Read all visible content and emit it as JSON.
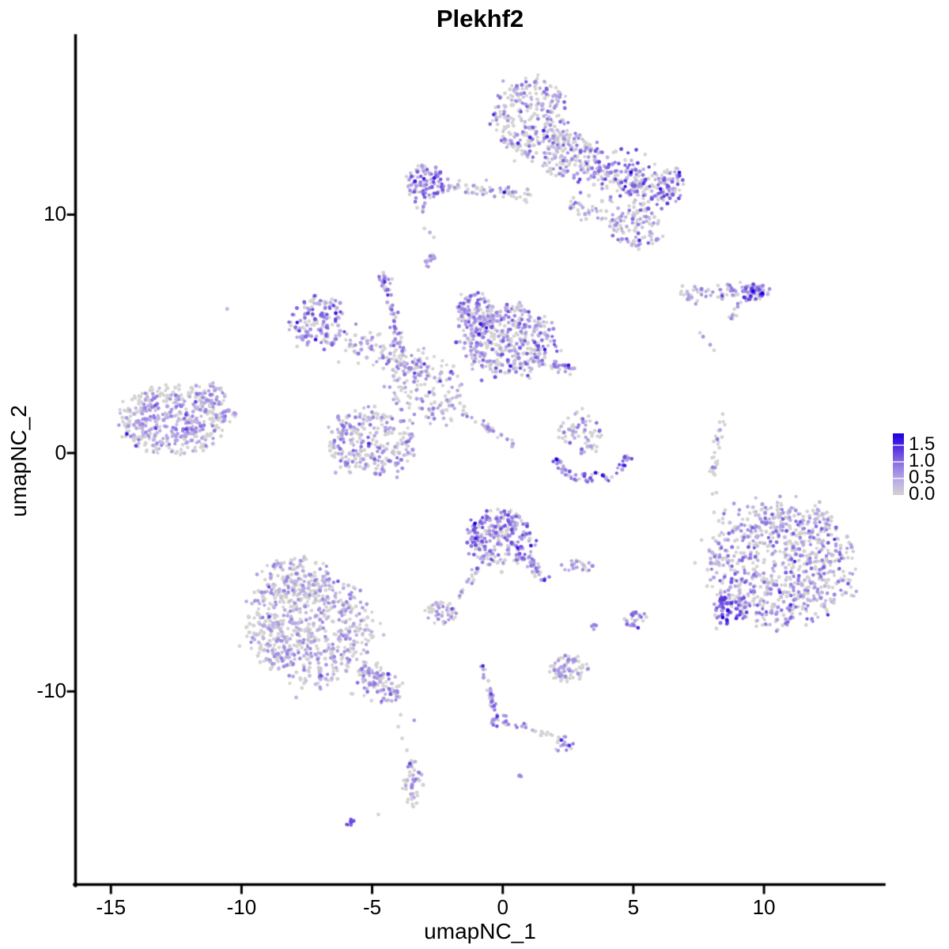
{
  "figure": {
    "title": "Plekhf2",
    "xlabel": "umapNC_1",
    "ylabel": "umapNC_2"
  },
  "chart_data": {
    "type": "scatter",
    "title": "Plekhf2",
    "xlabel": "umapNC_1",
    "ylabel": "umapNC_2",
    "xlim": [
      -16.4,
      14.6
    ],
    "ylim": [
      -18.15,
      17.51
    ],
    "x_ticks": [
      -15,
      -10,
      -5,
      0,
      5,
      10
    ],
    "x_tick_labels": [
      "-15",
      "-10",
      "-5",
      "0",
      "5",
      "10"
    ],
    "y_ticks": [
      10,
      0,
      -10
    ],
    "y_tick_labels": [
      "10",
      "0",
      "-10"
    ],
    "grid": false,
    "legend": {
      "position": "right",
      "labels": [
        "1.5",
        "1.0",
        "0.5",
        "0.0"
      ],
      "values": [
        1.5,
        1.0,
        0.5,
        0.0
      ],
      "vmin": 0,
      "vmax": 1.85
    },
    "color_stops": [
      [
        0.0,
        "#D3D3D3"
      ],
      [
        0.4,
        "#BCAEE4"
      ],
      [
        0.8,
        "#9B84E4"
      ],
      [
        1.2,
        "#7050E0"
      ],
      [
        1.6,
        "#3D18E0"
      ],
      [
        1.9,
        "#1A00E6"
      ]
    ],
    "gray_color": "#D3D3D3",
    "point_radius": 2.3,
    "seed": 42,
    "clusters": [
      {
        "shape": "blob",
        "cx": 1.06,
        "cy": 14.03,
        "rx": 1.45,
        "ry": 1.7,
        "n": 280,
        "gray": 0.52,
        "lo": 0.15,
        "hi": 1.15
      },
      {
        "shape": "blob",
        "cx": 2.52,
        "cy": 12.5,
        "rx": 1.0,
        "ry": 0.95,
        "n": 130,
        "gray": 0.5,
        "lo": 0.15,
        "hi": 1.15
      },
      {
        "shape": "band",
        "x1": 3.18,
        "y1": 12.14,
        "x2": 6.3,
        "y2": 10.8,
        "w": 0.95,
        "n": 240,
        "gray": 0.4,
        "lo": 0.2,
        "hi": 1.35
      },
      {
        "shape": "blob",
        "cx": 6.45,
        "cy": 11.21,
        "rx": 0.5,
        "ry": 0.75,
        "n": 45,
        "gray": 0.35,
        "lo": 0.3,
        "hi": 1.4
      },
      {
        "shape": "band",
        "x1": 2.6,
        "y1": 10.5,
        "x2": 4.4,
        "y2": 9.7,
        "w": 0.4,
        "n": 45,
        "gray": 0.5,
        "lo": 0.2,
        "hi": 1.1
      },
      {
        "shape": "blob",
        "cx": 5.15,
        "cy": 9.39,
        "rx": 0.95,
        "ry": 0.85,
        "n": 85,
        "gray": 0.48,
        "lo": 0.2,
        "hi": 1.15
      },
      {
        "shape": "blob",
        "cx": -2.97,
        "cy": 11.31,
        "rx": 0.78,
        "ry": 0.72,
        "n": 100,
        "gray": 0.3,
        "lo": 0.3,
        "hi": 1.25
      },
      {
        "shape": "band",
        "x1": -2.12,
        "y1": 11.14,
        "x2": 1.1,
        "y2": 10.78,
        "w": 0.3,
        "n": 65,
        "gray": 0.55,
        "lo": 0.2,
        "hi": 0.9
      },
      {
        "shape": "blob",
        "cx": -3.1,
        "cy": 10.3,
        "rx": 0.22,
        "ry": 0.25,
        "n": 6,
        "gray": 0.5,
        "lo": 0.3,
        "hi": 0.8
      },
      {
        "shape": "band",
        "x1": -3.0,
        "y1": 7.85,
        "x2": -2.58,
        "y2": 8.32,
        "w": 0.14,
        "n": 14,
        "gray": 0.15,
        "lo": 0.5,
        "hi": 1.05
      },
      {
        "shape": "band",
        "x1": 6.7,
        "y1": 6.67,
        "x2": 10.2,
        "y2": 6.8,
        "w": 0.34,
        "n": 85,
        "gray": 0.5,
        "lo": 0.3,
        "hi": 1.0
      },
      {
        "shape": "blob",
        "cx": 9.61,
        "cy": 6.73,
        "rx": 0.42,
        "ry": 0.33,
        "n": 40,
        "gray": 0.12,
        "lo": 0.5,
        "hi": 1.5
      },
      {
        "shape": "band",
        "x1": 9.12,
        "y1": 6.1,
        "x2": 8.67,
        "y2": 5.6,
        "w": 0.12,
        "n": 9,
        "gray": 0.35,
        "lo": 0.5,
        "hi": 1.0
      },
      {
        "shape": "blob",
        "cx": -7.06,
        "cy": 5.47,
        "rx": 1.05,
        "ry": 1.05,
        "n": 150,
        "gray": 0.28,
        "lo": 0.3,
        "hi": 1.3
      },
      {
        "shape": "band",
        "x1": -6.15,
        "y1": 4.81,
        "x2": -2.88,
        "y2": 3.48,
        "w": 0.6,
        "n": 120,
        "gray": 0.5,
        "lo": 0.2,
        "hi": 1.0
      },
      {
        "shape": "band",
        "x1": -4.42,
        "y1": 7.0,
        "x2": -3.94,
        "y2": 4.34,
        "w": 0.15,
        "n": 40,
        "gray": 0.35,
        "lo": 0.4,
        "hi": 1.1
      },
      {
        "shape": "blob",
        "cx": -4.48,
        "cy": 7.33,
        "rx": 0.3,
        "ry": 0.33,
        "n": 16,
        "gray": 0.2,
        "lo": 0.5,
        "hi": 1.1
      },
      {
        "shape": "blob",
        "cx": -2.79,
        "cy": 2.59,
        "rx": 1.5,
        "ry": 1.5,
        "n": 130,
        "gray": 0.55,
        "lo": 0.2,
        "hi": 0.9
      },
      {
        "shape": "blob",
        "cx": 0.21,
        "cy": 4.68,
        "rx": 1.75,
        "ry": 1.5,
        "n": 400,
        "gray": 0.36,
        "lo": 0.2,
        "hi": 1.25
      },
      {
        "shape": "blob",
        "cx": -1.0,
        "cy": 5.87,
        "rx": 0.85,
        "ry": 0.8,
        "n": 110,
        "gray": 0.3,
        "lo": 0.3,
        "hi": 1.3
      },
      {
        "shape": "blob",
        "cx": -5.09,
        "cy": 0.43,
        "rx": 1.6,
        "ry": 1.45,
        "n": 280,
        "gray": 0.45,
        "lo": 0.2,
        "hi": 1.1
      },
      {
        "shape": "band",
        "x1": -2.33,
        "y1": 2.26,
        "x2": 0.52,
        "y2": 0.36,
        "w": 0.12,
        "n": 35,
        "gray": 0.4,
        "lo": 0.3,
        "hi": 1.0
      },
      {
        "shape": "band",
        "x1": 1.97,
        "y1": 3.81,
        "x2": 2.73,
        "y2": 3.35,
        "w": 0.28,
        "n": 25,
        "gray": 0.25,
        "lo": 0.3,
        "hi": 1.1
      },
      {
        "shape": "blob",
        "cx": -12.73,
        "cy": 1.36,
        "rx": 1.95,
        "ry": 1.45,
        "n": 420,
        "gray": 0.22,
        "lo": 0.25,
        "hi": 0.95,
        "gray_edge": true
      },
      {
        "shape": "blob",
        "cx": -11.12,
        "cy": 2.42,
        "rx": 0.55,
        "ry": 0.5,
        "n": 50,
        "gray": 0.3,
        "lo": 0.25,
        "hi": 0.9
      },
      {
        "shape": "blob",
        "cx": -10.55,
        "cy": 1.53,
        "rx": 0.38,
        "ry": 0.3,
        "n": 25,
        "gray": 0.3,
        "lo": 0.25,
        "hi": 0.9
      },
      {
        "shape": "blob",
        "cx": 3.06,
        "cy": 0.9,
        "rx": 0.85,
        "ry": 0.95,
        "n": 65,
        "gray": 0.5,
        "lo": 0.3,
        "hi": 1.1
      },
      {
        "shape": "arc",
        "cx": 3.39,
        "cy": -0.2,
        "rx": 1.36,
        "ry": 0.92,
        "a1": 182,
        "a2": 366,
        "w": 0.3,
        "n": 60,
        "gray": 0.28,
        "lo": 0.4,
        "hi": 1.3
      },
      {
        "shape": "band",
        "x1": 8.36,
        "y1": 1.29,
        "x2": 8.0,
        "y2": -1.0,
        "w": 0.14,
        "n": 30,
        "gray": 0.68,
        "lo": 0.5,
        "hi": 0.9
      },
      {
        "shape": "blob",
        "cx": 10.7,
        "cy": -4.61,
        "rx": 2.75,
        "ry": 2.6,
        "n": 800,
        "gray": 0.44,
        "lo": 0.2,
        "hi": 1.15
      },
      {
        "shape": "blob",
        "cx": 8.73,
        "cy": -6.53,
        "rx": 0.68,
        "ry": 0.6,
        "n": 70,
        "gray": 0.15,
        "lo": 0.5,
        "hi": 1.45
      },
      {
        "shape": "blob",
        "cx": -0.09,
        "cy": -3.55,
        "rx": 1.3,
        "ry": 1.15,
        "n": 260,
        "gray": 0.3,
        "lo": 0.3,
        "hi": 1.3
      },
      {
        "shape": "band",
        "x1": 1.0,
        "y1": -4.28,
        "x2": 1.58,
        "y2": -5.44,
        "w": 0.2,
        "n": 30,
        "gray": 0.45,
        "lo": 0.4,
        "hi": 1.2
      },
      {
        "shape": "band",
        "x1": -0.88,
        "y1": -4.74,
        "x2": -1.76,
        "y2": -6.1,
        "w": 0.13,
        "n": 18,
        "gray": 0.6,
        "lo": 0.3,
        "hi": 0.8
      },
      {
        "shape": "blob",
        "cx": -2.36,
        "cy": -6.73,
        "rx": 0.6,
        "ry": 0.5,
        "n": 50,
        "gray": 0.3,
        "lo": 0.3,
        "hi": 0.9,
        "gray_edge": true
      },
      {
        "shape": "blob",
        "cx": 2.91,
        "cy": -4.74,
        "rx": 0.62,
        "ry": 0.3,
        "n": 22,
        "gray": 0.35,
        "lo": 0.3,
        "hi": 0.8
      },
      {
        "shape": "blob",
        "cx": 5.09,
        "cy": -6.97,
        "rx": 0.42,
        "ry": 0.4,
        "n": 26,
        "gray": 0.3,
        "lo": 0.4,
        "hi": 1.1
      },
      {
        "shape": "blob",
        "cx": 3.48,
        "cy": -7.26,
        "rx": 0.18,
        "ry": 0.18,
        "n": 7,
        "gray": 0.3,
        "lo": 0.5,
        "hi": 0.9
      },
      {
        "shape": "blob",
        "cx": -7.42,
        "cy": -7.36,
        "rx": 2.45,
        "ry": 2.3,
        "n": 650,
        "gray": 0.52,
        "lo": 0.2,
        "hi": 0.85
      },
      {
        "shape": "blob",
        "cx": -7.94,
        "cy": -5.31,
        "rx": 1.35,
        "ry": 1.0,
        "n": 130,
        "gray": 0.52,
        "lo": 0.2,
        "hi": 0.85
      },
      {
        "shape": "band",
        "x1": -5.45,
        "y1": -9.02,
        "x2": -4.03,
        "y2": -10.31,
        "w": 0.6,
        "n": 110,
        "gray": 0.45,
        "lo": 0.2,
        "hi": 1.0
      },
      {
        "shape": "blob",
        "cx": 2.45,
        "cy": -9.02,
        "rx": 0.8,
        "ry": 0.55,
        "n": 80,
        "gray": 0.35,
        "lo": 0.3,
        "hi": 0.85,
        "gray_edge": true
      },
      {
        "shape": "band",
        "x1": -0.79,
        "y1": -8.86,
        "x2": -0.3,
        "y2": -10.78,
        "w": 0.12,
        "n": 26,
        "gray": 0.45,
        "lo": 0.4,
        "hi": 1.3
      },
      {
        "shape": "blob",
        "cx": -0.15,
        "cy": -11.18,
        "rx": 0.35,
        "ry": 0.33,
        "n": 18,
        "gray": 0.4,
        "lo": 0.4,
        "hi": 1.2
      },
      {
        "shape": "band",
        "x1": 0.09,
        "y1": -11.38,
        "x2": 0.97,
        "y2": -11.48,
        "w": 0.1,
        "n": 11,
        "gray": 0.2,
        "lo": 0.5,
        "hi": 1.0
      },
      {
        "shape": "band",
        "x1": 1.06,
        "y1": -11.54,
        "x2": 1.97,
        "y2": -11.81,
        "w": 0.09,
        "n": 9,
        "gray": 0.85,
        "lo": 0.3,
        "hi": 0.6
      },
      {
        "shape": "blob",
        "cx": 2.33,
        "cy": -12.21,
        "rx": 0.38,
        "ry": 0.33,
        "n": 16,
        "gray": 0.6,
        "lo": 0.4,
        "hi": 0.9
      },
      {
        "shape": "blob",
        "cx": 0.64,
        "cy": -13.53,
        "rx": 0.12,
        "ry": 0.1,
        "n": 3,
        "gray": 0.1,
        "lo": 0.6,
        "hi": 0.9
      },
      {
        "shape": "blob",
        "cx": -3.42,
        "cy": -13.83,
        "rx": 0.4,
        "ry": 0.95,
        "n": 48,
        "gray": 0.3,
        "lo": 0.3,
        "hi": 0.9,
        "gray_edge": true
      },
      {
        "shape": "band",
        "x1": -6.09,
        "y1": -15.69,
        "x2": -5.7,
        "y2": -15.39,
        "w": 0.1,
        "n": 7,
        "gray": 0.05,
        "lo": 0.9,
        "hi": 1.4
      }
    ],
    "points": [
      [
        4.91,
        11.77,
        1.8
      ],
      [
        6.76,
        11.77,
        1.6
      ],
      [
        5.39,
        11.31,
        1.4
      ],
      [
        0.06,
        10.94,
        1.7
      ],
      [
        9.58,
        6.78,
        1.9
      ],
      [
        9.94,
        6.7,
        1.9
      ],
      [
        9.24,
        6.53,
        1.5
      ],
      [
        7.67,
        4.88,
        0.7
      ],
      [
        7.94,
        4.54,
        0.6
      ],
      [
        8.09,
        4.31,
        0
      ],
      [
        7.55,
        5.04,
        0
      ],
      [
        2.52,
        3.68,
        1.6
      ],
      [
        -14.39,
        0.8,
        1.6
      ],
      [
        -12.12,
        1.0,
        1.3
      ],
      [
        -13.3,
        2.0,
        1.2
      ],
      [
        -10.55,
        6.04,
        0.35
      ],
      [
        2.06,
        -0.27,
        1.9
      ],
      [
        3.55,
        -0.83,
        1.8
      ],
      [
        3.82,
        -0.93,
        1.7
      ],
      [
        8.42,
        1.63,
        0
      ],
      [
        8.18,
        -1.66,
        0
      ],
      [
        8.09,
        -2.49,
        0
      ],
      [
        8.42,
        -2.75,
        0
      ],
      [
        8.85,
        -2.12,
        0.6
      ],
      [
        8.03,
        -1.72,
        0
      ],
      [
        8.27,
        -2.85,
        0
      ],
      [
        7.61,
        -3.65,
        0
      ],
      [
        7.91,
        -4.11,
        0.5
      ],
      [
        7.36,
        -4.61,
        0
      ],
      [
        8.42,
        -6.9,
        1.9
      ],
      [
        8.58,
        -7.16,
        1.3
      ],
      [
        8.18,
        -7.36,
        0
      ],
      [
        8.33,
        -7.13,
        0.9
      ],
      [
        -1.06,
        -2.95,
        1.9
      ],
      [
        5.18,
        -7.33,
        1.5
      ],
      [
        -8.94,
        -6.87,
        1.3
      ],
      [
        -4.3,
        -10.12,
        1.1
      ],
      [
        -0.76,
        -8.93,
        1.5
      ],
      [
        -0.45,
        -10.11,
        1.3
      ],
      [
        -0.33,
        -10.61,
        1.1
      ],
      [
        -0.21,
        -11.05,
        1.4
      ],
      [
        2.24,
        -12.04,
        1.5
      ],
      [
        2.55,
        -12.27,
        1.4
      ],
      [
        -3.55,
        -13.03,
        1.3
      ],
      [
        -3.91,
        -10.98,
        0
      ],
      [
        -4.0,
        -11.48,
        0
      ],
      [
        -3.85,
        -11.97,
        0
      ],
      [
        -3.67,
        -12.47,
        0
      ],
      [
        -3.39,
        -11.21,
        0.6
      ],
      [
        -4.76,
        -15.16,
        0
      ],
      [
        -3.0,
        9.42,
        0
      ],
      [
        -2.79,
        9.25,
        0.4
      ],
      [
        -2.64,
        9.05,
        0
      ]
    ]
  }
}
